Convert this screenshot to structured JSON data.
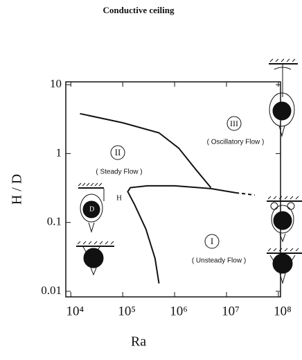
{
  "chart_data": {
    "type": "line",
    "title": "Conductive ceiling",
    "x_label": "Ra",
    "y_label": "H / D",
    "xlog": true,
    "ylog": true,
    "xlim": [
      8000,
      110000000
    ],
    "ylim": [
      0.0083,
      11
    ],
    "xticks": [
      {
        "value": 10000,
        "label": "10⁴"
      },
      {
        "value": 100000,
        "label": "10⁵"
      },
      {
        "value": 1000000,
        "label": "10⁶"
      },
      {
        "value": 10000000,
        "label": "10⁷"
      },
      {
        "value": 100000000,
        "label": "10⁸"
      }
    ],
    "yticks": [
      0.01,
      0.1,
      1,
      10
    ],
    "series": [
      {
        "color": "#111111",
        "dashed": false,
        "x": [
          15000,
          100000,
          500000,
          1200000,
          2500000,
          5000000
        ],
        "values": [
          3.8,
          2.8,
          2.0,
          1.2,
          0.6,
          0.32
        ]
      },
      {
        "color": "#111111",
        "dashed": false,
        "x": [
          500000,
          420000,
          280000,
          170000,
          125000,
          140000,
          300000,
          1000000,
          5000000,
          15000000
        ],
        "values": [
          0.013,
          0.03,
          0.08,
          0.18,
          0.28,
          0.32,
          0.34,
          0.34,
          0.31,
          0.27
        ]
      },
      {
        "color": "#111111",
        "dashed": true,
        "x": [
          15000000,
          35000000
        ],
        "values": [
          0.27,
          0.25
        ]
      }
    ],
    "annotations": [
      "II",
      "( Steady Flow )",
      "III",
      "( Oscillatory Flow )",
      "I",
      "( Unsteady Flow )",
      "H",
      "D"
    ]
  }
}
